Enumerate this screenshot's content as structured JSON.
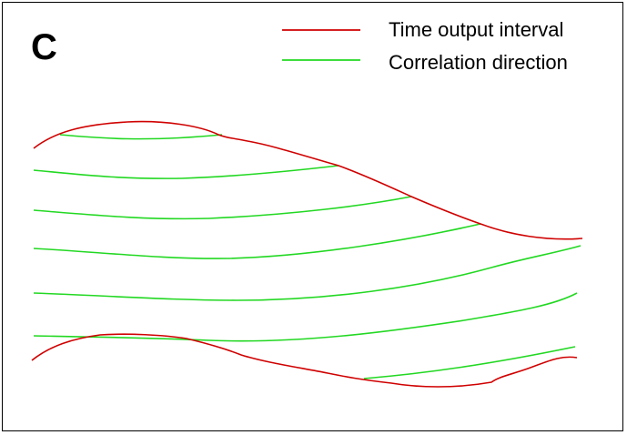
{
  "panel_label": "C",
  "legend": {
    "items": [
      {
        "key": "red",
        "label": "Time output interval",
        "color": "#d00000"
      },
      {
        "key": "green",
        "label": "Correlation direction",
        "color": "#22d822"
      }
    ]
  },
  "colors": {
    "red": "#d00000",
    "green": "#22d822",
    "frame": "#000000",
    "background": "#ffffff"
  }
}
